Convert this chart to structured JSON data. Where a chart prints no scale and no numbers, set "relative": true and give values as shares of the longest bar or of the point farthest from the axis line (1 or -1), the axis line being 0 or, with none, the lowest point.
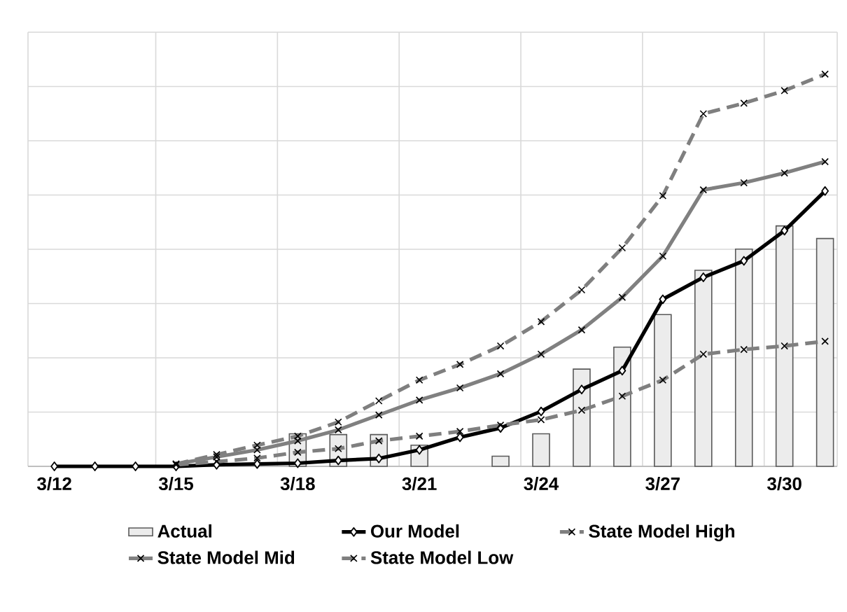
{
  "chart_data": {
    "type": "line",
    "relative": true,
    "grid": true,
    "legend": "bottom",
    "categories": [
      "3/12",
      null,
      null,
      "3/15",
      null,
      null,
      "3/18",
      null,
      null,
      "3/21",
      null,
      null,
      "3/24",
      null,
      null,
      "3/27",
      null,
      null,
      "3/30",
      null
    ],
    "series": [
      {
        "name": "Actual",
        "type": "bar",
        "color": "#ececec",
        "values": [
          null,
          null,
          null,
          null,
          null,
          null,
          0.083,
          0.081,
          0.081,
          0.054,
          null,
          0.026,
          0.083,
          0.248,
          0.304,
          0.387,
          0.5,
          0.554,
          0.613,
          0.581
        ]
      },
      {
        "name": "Our Model",
        "color": "#000000",
        "marker": "diamond",
        "line_style": "solid",
        "values": [
          0,
          0,
          0,
          0,
          0.004,
          0.006,
          0.008,
          0.015,
          0.02,
          0.042,
          0.074,
          0.098,
          0.14,
          0.196,
          0.244,
          0.426,
          0.482,
          0.524,
          0.601,
          0.702
        ]
      },
      {
        "name": "State Model High",
        "color": "#7f7f7f",
        "marker": "cross",
        "line_style": "dashed",
        "values": [
          null,
          null,
          null,
          0.006,
          0.03,
          0.054,
          0.077,
          0.113,
          0.167,
          0.22,
          0.26,
          0.307,
          0.369,
          0.45,
          0.557,
          0.69,
          0.899,
          0.926,
          0.958,
          1
        ]
      },
      {
        "name": "State Model Mid",
        "color": "#808080",
        "marker": "cross",
        "line_style": "solid",
        "values": [
          null,
          null,
          null,
          0.006,
          0.024,
          0.042,
          0.065,
          0.093,
          0.131,
          0.169,
          0.2,
          0.236,
          0.286,
          0.348,
          0.431,
          0.536,
          0.705,
          0.723,
          0.748,
          0.777
        ]
      },
      {
        "name": "State Model Low",
        "color": "#7f7f7f",
        "marker": "cross",
        "line_style": "dashed",
        "values": [
          null,
          null,
          null,
          0.004,
          0.012,
          0.021,
          0.036,
          0.045,
          0.065,
          0.077,
          0.089,
          0.105,
          0.119,
          0.143,
          0.179,
          0.22,
          0.286,
          0.298,
          0.307,
          0.319
        ]
      }
    ]
  }
}
